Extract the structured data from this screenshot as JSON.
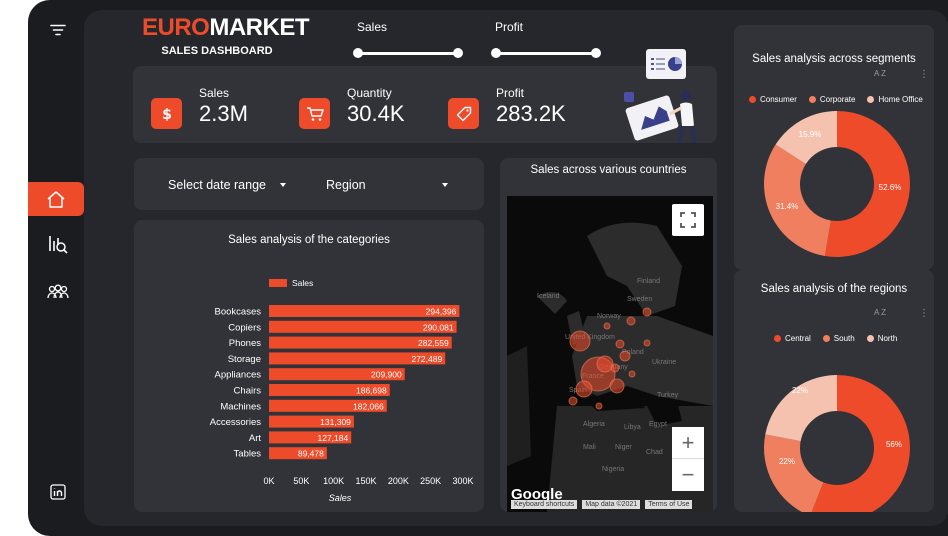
{
  "brand": {
    "euro": "EURO",
    "market": "MARKET",
    "subtitle": "SALES DASHBOARD"
  },
  "sliders": [
    {
      "label": "Sales"
    },
    {
      "label": "Profit"
    }
  ],
  "kpis": [
    {
      "label": "Sales",
      "value": "2.3M",
      "icon": "dollar-icon"
    },
    {
      "label": "Quantity",
      "value": "30.4K",
      "icon": "cart-icon"
    },
    {
      "label": "Profit",
      "value": "283.2K",
      "icon": "tag-icon"
    }
  ],
  "filters": {
    "date_range": "Select date range",
    "region": "Region"
  },
  "map": {
    "title": "Sales across various countries",
    "labels": [
      "Finland",
      "Sweden",
      "Iceland",
      "Norway",
      "United Kingdom",
      "Poland",
      "Ukraine",
      "Germany",
      "France",
      "Spain",
      "Turkey",
      "Algeria",
      "Libya",
      "Egypt",
      "Mali",
      "Niger",
      "Chad",
      "Sudan",
      "Nigeria"
    ],
    "zoom_in": "+",
    "zoom_out": "−",
    "google": "Google",
    "footer": [
      "Keyboard shortcuts",
      "Map data ©2021",
      "Terms of Use"
    ]
  },
  "colors": {
    "accent": "#ee4b2b",
    "medium": "#ef7f5e",
    "light": "#f5c2b0",
    "panel": "#323338"
  },
  "chart_data": [
    {
      "type": "bar",
      "title": "Sales analysis of the categories",
      "legend": "Sales",
      "xlabel": "Sales",
      "categories": [
        "Bookcases",
        "Copiers",
        "Phones",
        "Storage",
        "Appliances",
        "Chairs",
        "Machines",
        "Accessories",
        "Art",
        "Tables"
      ],
      "values": [
        294396,
        290081,
        282559,
        272489,
        209900,
        186698,
        182066,
        131309,
        127184,
        89478
      ],
      "value_labels": [
        "294,396",
        "290,081",
        "282,559",
        "272,489",
        "209,900",
        "186,698",
        "182,066",
        "131,309",
        "127,184",
        "89,478"
      ],
      "xticks": [
        "0K",
        "50K",
        "100K",
        "150K",
        "200K",
        "250K",
        "300K"
      ],
      "xlim": [
        0,
        300000
      ]
    },
    {
      "type": "pie",
      "title": "Sales analysis across segments",
      "categories": [
        "Consumer",
        "Corporate",
        "Home Office"
      ],
      "values": [
        52.6,
        31.4,
        15.9
      ],
      "value_labels": [
        "52.6%",
        "31.4%",
        "15.9%"
      ],
      "sort_icon": "A Z"
    },
    {
      "type": "pie",
      "title": "Sales analysis of the regions",
      "categories": [
        "Central",
        "South",
        "North"
      ],
      "values": [
        56,
        22,
        22
      ],
      "value_labels": [
        "56%",
        "22%",
        "22%"
      ],
      "sort_icon": "A Z"
    }
  ]
}
